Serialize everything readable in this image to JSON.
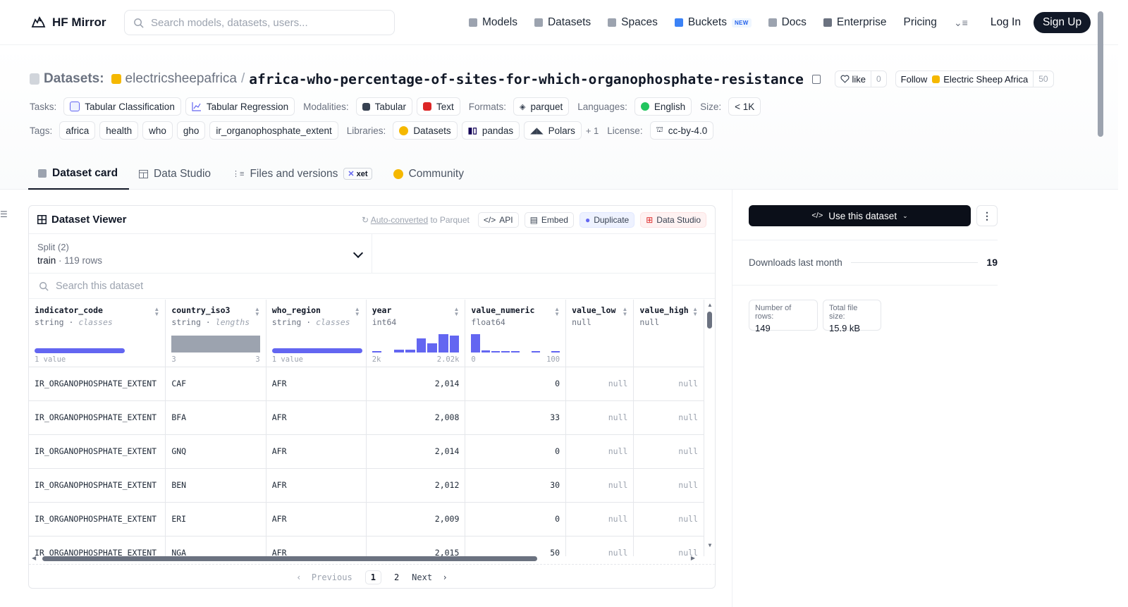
{
  "nav": {
    "brand": "HF Mirror",
    "search_placeholder": "Search models, datasets, users...",
    "links": [
      {
        "label": "Models",
        "icon": "cube-icon",
        "color": "#9ca3af"
      },
      {
        "label": "Datasets",
        "icon": "database-icon",
        "color": "#9ca3af"
      },
      {
        "label": "Spaces",
        "icon": "grid-icon",
        "color": "#9ca3af"
      },
      {
        "label": "Buckets",
        "icon": "bucket-icon",
        "color": "#3b82f6",
        "badge": "NEW"
      },
      {
        "label": "Docs",
        "icon": "book-icon",
        "color": "#9ca3af"
      },
      {
        "label": "Enterprise",
        "icon": "enterprise-icon",
        "color": "#6b7280"
      },
      {
        "label": "Pricing"
      }
    ],
    "login": "Log In",
    "signup": "Sign Up"
  },
  "header": {
    "datasets_label": "Datasets:",
    "owner": "electricsheepafrica",
    "separator": "/",
    "name": "africa-who-percentage-of-sites-for-which-organophosphate-resistance",
    "like_label": "like",
    "like_count": "0",
    "follow_label": "Follow",
    "follow_org": "Electric Sheep Africa",
    "follow_count": "50",
    "tasks_label": "Tasks:",
    "tasks": [
      "Tabular Classification",
      "Tabular Regression"
    ],
    "modalities_label": "Modalities:",
    "modalities": [
      "Tabular",
      "Text"
    ],
    "formats_label": "Formats:",
    "formats": [
      "parquet"
    ],
    "languages_label": "Languages:",
    "languages": [
      "English"
    ],
    "size_label": "Size:",
    "size": "< 1K",
    "tags_label": "Tags:",
    "tags": [
      "africa",
      "health",
      "who",
      "gho",
      "ir_organophosphate_extent"
    ],
    "libraries_label": "Libraries:",
    "libraries": [
      "Datasets",
      "pandas",
      "Polars"
    ],
    "libraries_more": "+ 1",
    "license_label": "License:",
    "license": "cc-by-4.0"
  },
  "tabs": [
    {
      "label": "Dataset card",
      "active": true
    },
    {
      "label": "Data Studio"
    },
    {
      "label": "Files and versions",
      "badge": "xet"
    },
    {
      "label": "Community"
    }
  ],
  "viewer": {
    "title": "Dataset Viewer",
    "auto_converted": "Auto-converted",
    "auto_suffix": " to Parquet",
    "api": "API",
    "embed": "Embed",
    "duplicate": "Duplicate",
    "data_studio": "Data Studio",
    "split_label": "Split (2)",
    "split_name": "train",
    "split_rows": "119 rows",
    "search_placeholder": "Search this dataset",
    "columns": [
      {
        "name": "indicator_code",
        "type": "string",
        "sub": "classes",
        "kind": "bar",
        "bar_fraction": 1.0,
        "stat_left": "1 value",
        "stat_right": ""
      },
      {
        "name": "country_iso3",
        "type": "string",
        "sub": "lengths",
        "kind": "block",
        "stat_left": "3",
        "stat_right": "3"
      },
      {
        "name": "who_region",
        "type": "string",
        "sub": "classes",
        "kind": "bar",
        "bar_fraction": 1.0,
        "stat_left": "1 value",
        "stat_right": ""
      },
      {
        "name": "year",
        "type": "int64",
        "sub": "",
        "kind": "hist",
        "hist": [
          0.05,
          0,
          0.15,
          0.12,
          0.75,
          0.5,
          1.0,
          0.9
        ],
        "stat_left": "2k",
        "stat_right": "2.02k"
      },
      {
        "name": "value_numeric",
        "type": "float64",
        "sub": "",
        "kind": "hist",
        "hist": [
          1.0,
          0.08,
          0.05,
          0.05,
          0.05,
          0,
          0.05,
          0,
          0.05
        ],
        "stat_left": "0",
        "stat_right": "100"
      },
      {
        "name": "value_low",
        "type": "null",
        "sub": "",
        "kind": "none",
        "stat_left": "",
        "stat_right": ""
      },
      {
        "name": "value_high",
        "type": "null",
        "sub": "",
        "kind": "none",
        "stat_left": "",
        "stat_right": ""
      }
    ],
    "rows": [
      [
        "IR_ORGANOPHOSPHATE_EXTENT",
        "CAF",
        "AFR",
        "2,014",
        "0",
        "null",
        "null"
      ],
      [
        "IR_ORGANOPHOSPHATE_EXTENT",
        "BFA",
        "AFR",
        "2,008",
        "33",
        "null",
        "null"
      ],
      [
        "IR_ORGANOPHOSPHATE_EXTENT",
        "GNQ",
        "AFR",
        "2,014",
        "0",
        "null",
        "null"
      ],
      [
        "IR_ORGANOPHOSPHATE_EXTENT",
        "BEN",
        "AFR",
        "2,012",
        "30",
        "null",
        "null"
      ],
      [
        "IR_ORGANOPHOSPHATE_EXTENT",
        "ERI",
        "AFR",
        "2,009",
        "0",
        "null",
        "null"
      ],
      [
        "IR_ORGANOPHOSPHATE_EXTENT",
        "NGA",
        "AFR",
        "2,015",
        "50",
        "null",
        "null"
      ]
    ],
    "pager": {
      "prev": "Previous",
      "pages": [
        "1",
        "2"
      ],
      "current": "1",
      "next": "Next"
    }
  },
  "sidebar": {
    "use_button": "Use this dataset",
    "downloads_label": "Downloads last month",
    "downloads_value": "19",
    "rows_label": "Number of rows:",
    "rows_value": "149",
    "size_label": "Total file size:",
    "size_value": "15.9 kB"
  },
  "colors": {
    "accent": "#6366f1",
    "dark_button": "#0b0f19",
    "brand_yellow": "#f5b800"
  }
}
